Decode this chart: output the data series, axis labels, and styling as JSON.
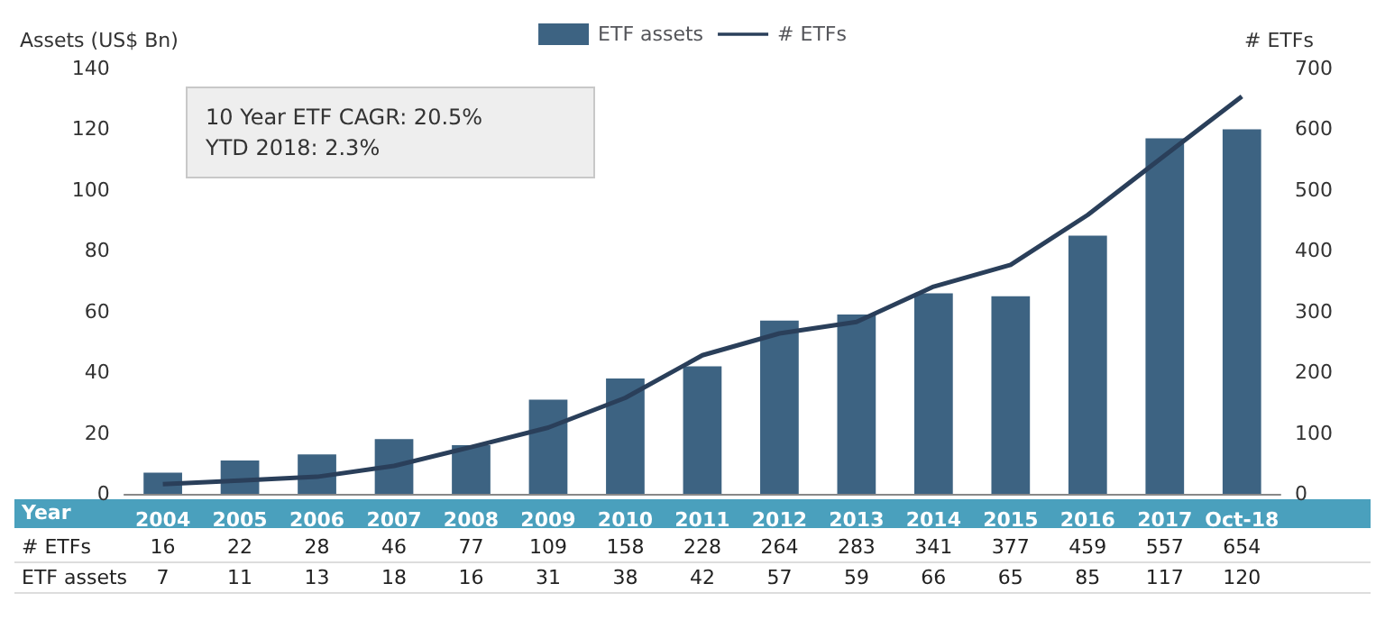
{
  "chart_data": {
    "type": "bar",
    "xlabel": "Year",
    "ylabel": "Assets (US$ Bn)",
    "y2label": "# ETFs",
    "categories": [
      "2004",
      "2005",
      "2006",
      "2007",
      "2008",
      "2009",
      "2010",
      "2011",
      "2012",
      "2013",
      "2014",
      "2015",
      "2016",
      "2017",
      "Oct-18"
    ],
    "series": [
      {
        "name": "ETF assets",
        "color": "#3d6382",
        "values": [
          7,
          11,
          13,
          18,
          16,
          31,
          38,
          42,
          57,
          59,
          66,
          65,
          85,
          117,
          120
        ]
      },
      {
        "name": "# ETFs",
        "type": "line",
        "axis": "y2",
        "color": "#2a3f5a",
        "values": [
          16,
          22,
          28,
          46,
          77,
          109,
          158,
          228,
          264,
          283,
          341,
          377,
          459,
          557,
          654
        ]
      }
    ],
    "ylim": [
      0,
      140
    ],
    "yticks": [
      0,
      20,
      40,
      60,
      80,
      100,
      120,
      140
    ],
    "y2lim": [
      0,
      700
    ],
    "y2ticks": [
      0,
      100,
      200,
      300,
      400,
      500,
      600,
      700
    ],
    "annotations": [
      "10 Year ETF CAGR: 20.5%",
      "YTD 2018: 2.3%"
    ],
    "data_labels": true,
    "legend": "top",
    "grid": false,
    "marker": "none"
  }
}
